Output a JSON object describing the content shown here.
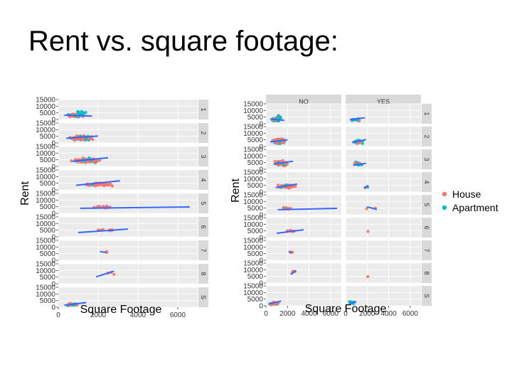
{
  "slide": {
    "title": "Rent vs. square footage:"
  },
  "colors": {
    "house": "#f8766d",
    "apartment": "#00bfc4",
    "fit": "#3366ff",
    "panel_bg": "#ebebeb",
    "strip_bg": "#d9d9d9"
  },
  "chart_data": [
    {
      "type": "scatter",
      "facet_rows": [
        "1",
        "2",
        "3",
        "4",
        "5",
        "6",
        "7",
        "8",
        "S"
      ],
      "xlabel": "Square Footage",
      "ylabel": "Rent",
      "xlim": [
        0,
        7000
      ],
      "ylim": [
        0,
        15000
      ],
      "x_ticks": [
        0,
        2000,
        4000,
        6000
      ],
      "y_ticks": [
        0,
        5000,
        10000,
        15000
      ],
      "series": [
        {
          "name": "House",
          "color_key": "house"
        },
        {
          "name": "Apartment",
          "color_key": "apartment"
        }
      ],
      "fits": {
        "1": [
          [
            300,
            3200
          ],
          [
            1700,
            2600
          ]
        ],
        "2": [
          [
            400,
            3500
          ],
          [
            2000,
            5200
          ]
        ],
        "3": [
          [
            700,
            3800
          ],
          [
            2500,
            6500
          ]
        ],
        "4": [
          [
            900,
            3500
          ],
          [
            3100,
            6800
          ]
        ],
        "5": [
          [
            1100,
            3800
          ],
          [
            6600,
            4800
          ]
        ],
        "6": [
          [
            1000,
            3200
          ],
          [
            3500,
            5800
          ]
        ],
        "7": [
          [
            2100,
            6600
          ],
          [
            2400,
            5800
          ]
        ],
        "8": [
          [
            1900,
            5200
          ],
          [
            2800,
            9500
          ]
        ],
        "S": [
          [
            300,
            1500
          ],
          [
            1400,
            3500
          ]
        ]
      }
    },
    {
      "type": "scatter",
      "facet_cols": [
        "NO",
        "YES"
      ],
      "facet_rows": [
        "1",
        "2",
        "3",
        "4",
        "5",
        "6",
        "7",
        "8",
        "S"
      ],
      "xlabel": "Square Footage",
      "ylabel": "Rent",
      "xlim": [
        0,
        7000
      ],
      "ylim": [
        0,
        15000
      ],
      "x_ticks": [
        0,
        2000,
        4000,
        6000
      ],
      "y_ticks": [
        0,
        5000,
        10000,
        15000
      ],
      "legend": {
        "position": "right",
        "entries": [
          "House",
          "Apartment"
        ]
      },
      "fits": {
        "NO-1": [
          [
            400,
            3500
          ],
          [
            1700,
            2600
          ]
        ],
        "NO-2": [
          [
            400,
            3400
          ],
          [
            2000,
            5000
          ]
        ],
        "NO-3": [
          [
            700,
            3800
          ],
          [
            2500,
            6000
          ]
        ],
        "NO-4": [
          [
            900,
            3300
          ],
          [
            2900,
            6000
          ]
        ],
        "NO-5": [
          [
            1100,
            3800
          ],
          [
            6600,
            4800
          ]
        ],
        "NO-6": [
          [
            1000,
            3200
          ],
          [
            3500,
            5800
          ]
        ],
        "NO-7": [
          [
            2100,
            6600
          ],
          [
            2400,
            5800
          ]
        ],
        "NO-8": [
          [
            2300,
            6500
          ],
          [
            2800,
            9500
          ]
        ],
        "NO-S": [
          [
            300,
            1500
          ],
          [
            1400,
            3500
          ]
        ],
        "YES-1": [
          [
            400,
            3000
          ],
          [
            1800,
            4500
          ]
        ],
        "YES-2": [
          [
            600,
            3000
          ],
          [
            1900,
            5200
          ]
        ],
        "YES-3": [
          [
            700,
            3000
          ],
          [
            1900,
            4500
          ]
        ],
        "YES-4": [
          [
            1700,
            3000
          ],
          [
            2100,
            5000
          ]
        ],
        "YES-5": [
          [
            2000,
            6000
          ],
          [
            2900,
            4000
          ]
        ],
        "YES-S": [
          [
            300,
            1500
          ],
          [
            1000,
            3000
          ]
        ]
      }
    }
  ]
}
